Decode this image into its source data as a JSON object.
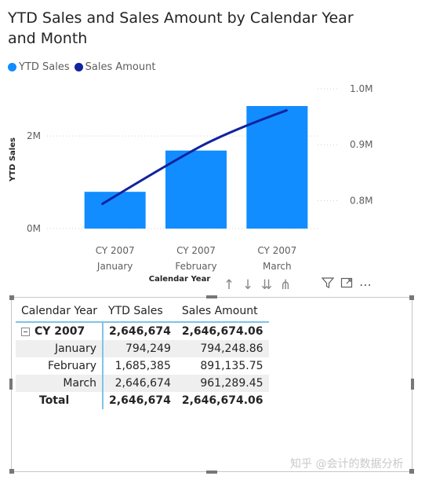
{
  "chart_data": {
    "type": "combo-bar-line",
    "title": "YTD Sales and Sales Amount by Calendar Year and Month",
    "categories": [
      [
        "CY 2007",
        "January"
      ],
      [
        "CY 2007",
        "February"
      ],
      [
        "CY 2007",
        "March"
      ]
    ],
    "series": [
      {
        "name": "YTD Sales",
        "type": "bar",
        "axis": "left",
        "color": "#118DFF",
        "values": [
          794249,
          1685385,
          2646674
        ]
      },
      {
        "name": "Sales Amount",
        "type": "line",
        "axis": "right",
        "color": "#12239E",
        "values": [
          794248.86,
          891135.75,
          961289.45
        ]
      }
    ],
    "xlabel": "Calendar Year",
    "ylabel": "YTD Sales",
    "left_axis": {
      "ticks": [
        "0M",
        "2M"
      ],
      "tick_values": [
        0,
        2000000
      ],
      "range": [
        0,
        2646674
      ]
    },
    "right_axis": {
      "ticks": [
        "0.8M",
        "0.9M",
        "1.0M"
      ],
      "tick_values": [
        800000,
        900000,
        1000000
      ],
      "range": [
        750000,
        1000000
      ]
    },
    "legend": "top-left",
    "grid": true
  },
  "legend_items": [
    {
      "label": "YTD Sales",
      "color": "#118DFF"
    },
    {
      "label": "Sales Amount",
      "color": "#12239E"
    }
  ],
  "toolbar": {
    "icons": [
      "arrow-up-icon",
      "arrow-down-icon",
      "double-arrow-down-icon",
      "expand-hierarchy-icon",
      "filter-icon",
      "focus-mode-icon",
      "more-options-icon"
    ]
  },
  "matrix": {
    "headers": [
      "Calendar Year",
      "YTD Sales",
      "Sales Amount"
    ],
    "year_row": {
      "label": "CY 2007",
      "ytd": "2,646,674",
      "amount": "2,646,674.06"
    },
    "rows": [
      {
        "label": "January",
        "ytd": "794,249",
        "amount": "794,248.86"
      },
      {
        "label": "February",
        "ytd": "1,685,385",
        "amount": "891,135.75"
      },
      {
        "label": "March",
        "ytd": "2,646,674",
        "amount": "961,289.45"
      }
    ],
    "total": {
      "label": "Total",
      "ytd": "2,646,674",
      "amount": "2,646,674.06"
    }
  },
  "watermark": "知乎 @会计的数据分析"
}
